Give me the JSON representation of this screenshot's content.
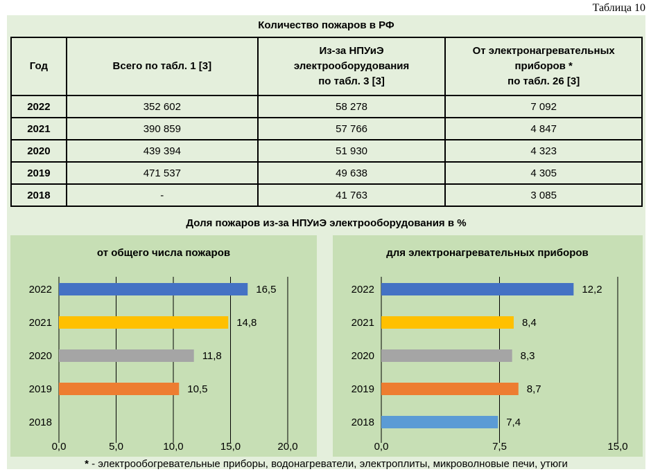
{
  "table_number": "Таблица 10",
  "table": {
    "title": "Количество пожаров в РФ",
    "headers": {
      "year": "Год",
      "total": "Всего по табл. 1 [3]",
      "npue_l1": "Из-за НПУиЭ",
      "npue_l2": "электрооборудования",
      "npue_l3": "по табл. 3 [3]",
      "heat_l1": "От электронагревательных",
      "heat_l2": "приборов *",
      "heat_l3": "по табл. 26 [3]"
    },
    "rows": [
      {
        "year": "2022",
        "total": "352 602",
        "npue": "58 278",
        "heat": "7 092"
      },
      {
        "year": "2021",
        "total": "390 859",
        "npue": "57 766",
        "heat": "4 847"
      },
      {
        "year": "2020",
        "total": "439 394",
        "npue": "51 930",
        "heat": "4 323"
      },
      {
        "year": "2019",
        "total": "471 537",
        "npue": "49 638",
        "heat": "4 305"
      },
      {
        "year": "2018",
        "total": "-",
        "npue": "41 763",
        "heat": "3 085"
      }
    ]
  },
  "charts_title": "Доля пожаров из-за НПУиЭ электрооборудования в %",
  "chart_data": [
    {
      "type": "bar",
      "orientation": "horizontal",
      "title": "от общего числа пожаров",
      "categories": [
        "2022",
        "2021",
        "2020",
        "2019",
        "2018"
      ],
      "values": [
        16.5,
        14.8,
        11.8,
        10.5,
        null
      ],
      "value_labels": [
        "16,5",
        "14,8",
        "11,8",
        "10,5",
        ""
      ],
      "colors": [
        "#4472c4",
        "#ffc000",
        "#a5a5a5",
        "#ed7d31",
        "#5b9bd5"
      ],
      "xlim": [
        0,
        20
      ],
      "ticks": [
        0,
        5,
        10,
        15,
        20
      ],
      "tick_labels": [
        "0,0",
        "5,0",
        "10,0",
        "15,0",
        "20,0"
      ],
      "grid": true
    },
    {
      "type": "bar",
      "orientation": "horizontal",
      "title": "для электронагревательных приборов",
      "categories": [
        "2022",
        "2021",
        "2020",
        "2019",
        "2018"
      ],
      "values": [
        12.2,
        8.4,
        8.3,
        8.7,
        7.4
      ],
      "value_labels": [
        "12,2",
        "8,4",
        "8,3",
        "8,7",
        "7,4"
      ],
      "colors": [
        "#4472c4",
        "#ffc000",
        "#a5a5a5",
        "#ed7d31",
        "#5b9bd5"
      ],
      "xlim": [
        0,
        15
      ],
      "ticks": [
        0,
        7.5,
        15
      ],
      "tick_labels": [
        "0,0",
        "7,5",
        "15,0"
      ],
      "grid": true
    }
  ],
  "footnote": {
    "mark": "*",
    "text": " - электрообогревательные приборы, водонагреватели, электроплиты, микроволновые печи, утюги"
  }
}
